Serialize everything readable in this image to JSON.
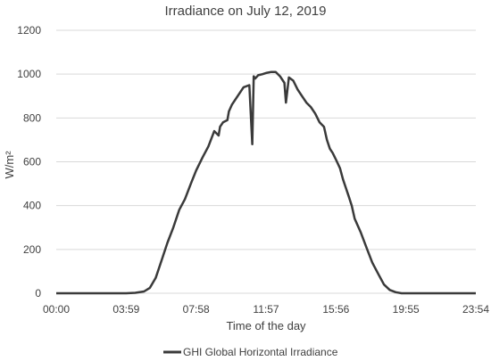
{
  "chart_data": {
    "type": "line",
    "title": "Irradiance on July 12, 2019",
    "xlabel": "Time of the day",
    "ylabel": "W/m²",
    "ylim": [
      0,
      1200
    ],
    "xlim": [
      "00:00",
      "23:54"
    ],
    "yticks": [
      0,
      200,
      400,
      600,
      800,
      1000,
      1200
    ],
    "xticks": [
      "00:00",
      "03:59",
      "07:58",
      "11:57",
      "15:56",
      "19:55",
      "23:54"
    ],
    "grid": true,
    "legend_position": "bottom",
    "line_color": "#3a3a3a",
    "series": [
      {
        "name": "GHI Global Horizontal Irradiance",
        "x": [
          "00:00",
          "01:00",
          "02:00",
          "03:00",
          "03:59",
          "04:30",
          "05:00",
          "05:20",
          "05:40",
          "06:00",
          "06:20",
          "06:40",
          "07:00",
          "07:20",
          "07:40",
          "07:58",
          "08:20",
          "08:40",
          "09:00",
          "09:15",
          "09:20",
          "09:30",
          "09:45",
          "09:50",
          "10:00",
          "10:20",
          "10:40",
          "11:00",
          "11:10",
          "11:15",
          "11:20",
          "11:30",
          "11:45",
          "11:57",
          "12:15",
          "12:30",
          "12:45",
          "13:00",
          "13:05",
          "13:15",
          "13:30",
          "13:45",
          "14:00",
          "14:15",
          "14:30",
          "14:45",
          "15:00",
          "15:15",
          "15:25",
          "15:35",
          "15:45",
          "15:56",
          "16:10",
          "16:20",
          "16:30",
          "16:40",
          "16:50",
          "17:00",
          "17:20",
          "17:40",
          "18:00",
          "18:20",
          "18:40",
          "19:00",
          "19:20",
          "19:40",
          "19:55",
          "20:30",
          "21:00",
          "22:00",
          "23:00",
          "23:54"
        ],
        "values": [
          0,
          0,
          0,
          0,
          0,
          2,
          8,
          25,
          70,
          150,
          230,
          300,
          380,
          430,
          500,
          560,
          620,
          670,
          740,
          720,
          760,
          780,
          790,
          830,
          860,
          900,
          940,
          950,
          680,
          990,
          980,
          995,
          1000,
          1005,
          1010,
          1010,
          990,
          960,
          870,
          985,
          970,
          930,
          900,
          870,
          850,
          820,
          780,
          760,
          700,
          660,
          640,
          610,
          570,
          520,
          480,
          440,
          400,
          340,
          280,
          210,
          140,
          90,
          40,
          15,
          5,
          0,
          0,
          0,
          0,
          0,
          0,
          0
        ]
      }
    ]
  }
}
